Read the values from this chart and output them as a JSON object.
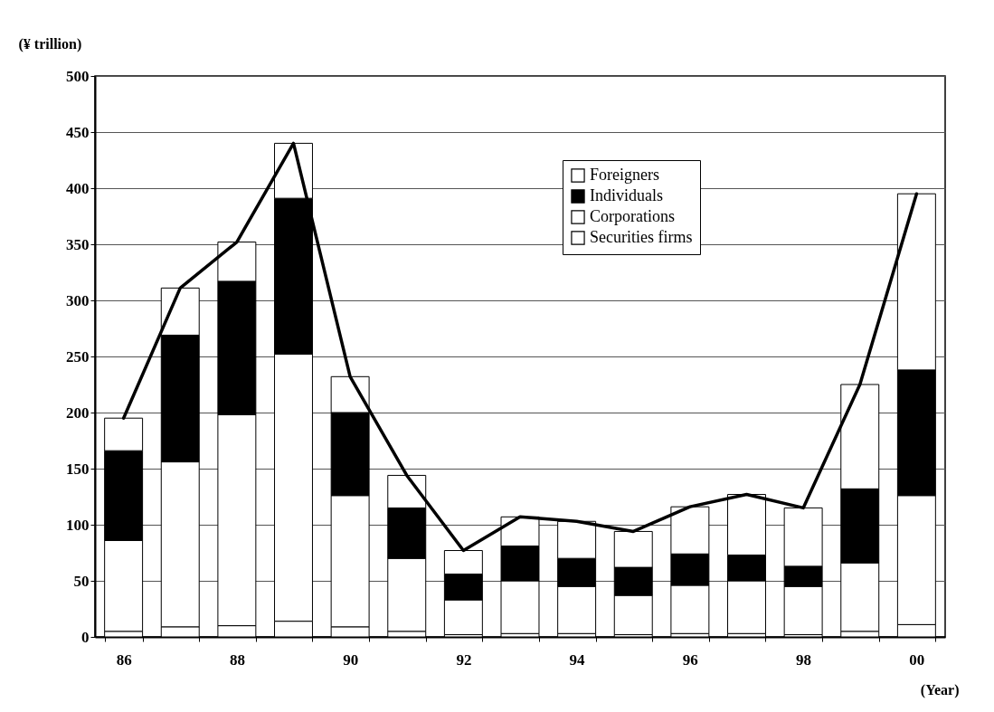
{
  "chart_data": {
    "type": "bar",
    "stacked": true,
    "xlabel": "(Year)",
    "ylabel": "(¥ trillion)",
    "categories": [
      "86",
      null,
      "88",
      null,
      "90",
      null,
      "92",
      null,
      "94",
      null,
      "96",
      null,
      "98",
      null,
      "00"
    ],
    "ylim": [
      0,
      500
    ],
    "yticks": [
      0,
      50,
      100,
      150,
      200,
      250,
      300,
      350,
      400,
      450,
      500
    ],
    "grid": "y",
    "legend": "top right",
    "series": [
      {
        "name": "Securities firms",
        "color": "#ffffff",
        "values": [
          5,
          9,
          10,
          14,
          9,
          5,
          2,
          3,
          3,
          2,
          3,
          3,
          2,
          5,
          11
        ]
      },
      {
        "name": "Corporations",
        "color": "#ffffff",
        "values": [
          81,
          147,
          188,
          238,
          117,
          65,
          31,
          47,
          42,
          35,
          43,
          47,
          43,
          61,
          115
        ]
      },
      {
        "name": "Individuals",
        "color": "#000000",
        "values": [
          80,
          113,
          119,
          139,
          74,
          45,
          23,
          31,
          25,
          25,
          28,
          23,
          18,
          66,
          112
        ]
      },
      {
        "name": "Foreigners",
        "color": "#ffffff",
        "values": [
          29,
          42,
          35,
          49,
          32,
          29,
          21,
          26,
          33,
          32,
          42,
          54,
          52,
          93,
          157
        ]
      },
      {
        "type": "line",
        "color": "#000000",
        "values": [
          195,
          311,
          352,
          440,
          232,
          144,
          77,
          107,
          103,
          94,
          116,
          127,
          115,
          225,
          395
        ]
      }
    ]
  }
}
